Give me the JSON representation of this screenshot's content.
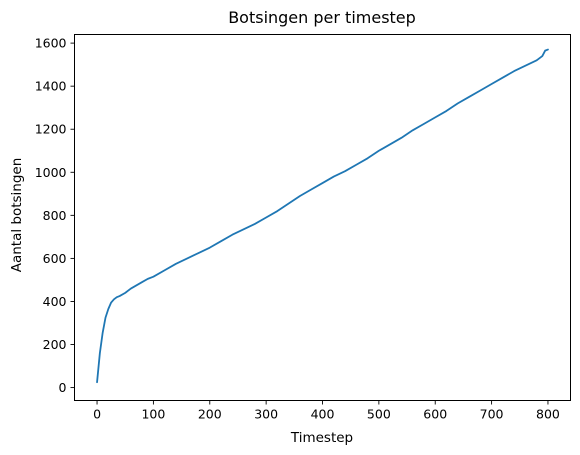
{
  "chart_data": {
    "type": "line",
    "title": "Botsingen per timestep",
    "xlabel": "Timestep",
    "ylabel": "Aantal botsingen",
    "xlim": [
      -40,
      840
    ],
    "ylim": [
      -60,
      1640
    ],
    "x_ticks": [
      0,
      100,
      200,
      300,
      400,
      500,
      600,
      700,
      800
    ],
    "y_ticks": [
      0,
      200,
      400,
      600,
      800,
      1000,
      1200,
      1400,
      1600
    ],
    "grid": false,
    "legend": "none",
    "line_color": "#1f77b4",
    "series": [
      {
        "x": [
          0,
          5,
          10,
          15,
          20,
          25,
          30,
          35,
          40,
          50,
          60,
          70,
          80,
          90,
          100,
          120,
          140,
          160,
          180,
          200,
          220,
          240,
          260,
          280,
          300,
          320,
          340,
          360,
          380,
          400,
          420,
          440,
          460,
          480,
          500,
          520,
          540,
          560,
          580,
          600,
          620,
          640,
          660,
          680,
          700,
          720,
          740,
          760,
          780,
          790,
          795,
          800
        ],
        "y": [
          25,
          160,
          255,
          325,
          365,
          395,
          410,
          420,
          425,
          440,
          460,
          475,
          490,
          505,
          515,
          545,
          575,
          600,
          625,
          650,
          680,
          710,
          735,
          760,
          790,
          820,
          855,
          890,
          920,
          950,
          980,
          1005,
          1035,
          1065,
          1100,
          1130,
          1160,
          1195,
          1225,
          1255,
          1285,
          1320,
          1350,
          1380,
          1410,
          1440,
          1470,
          1495,
          1520,
          1540,
          1565,
          1570
        ]
      }
    ]
  }
}
